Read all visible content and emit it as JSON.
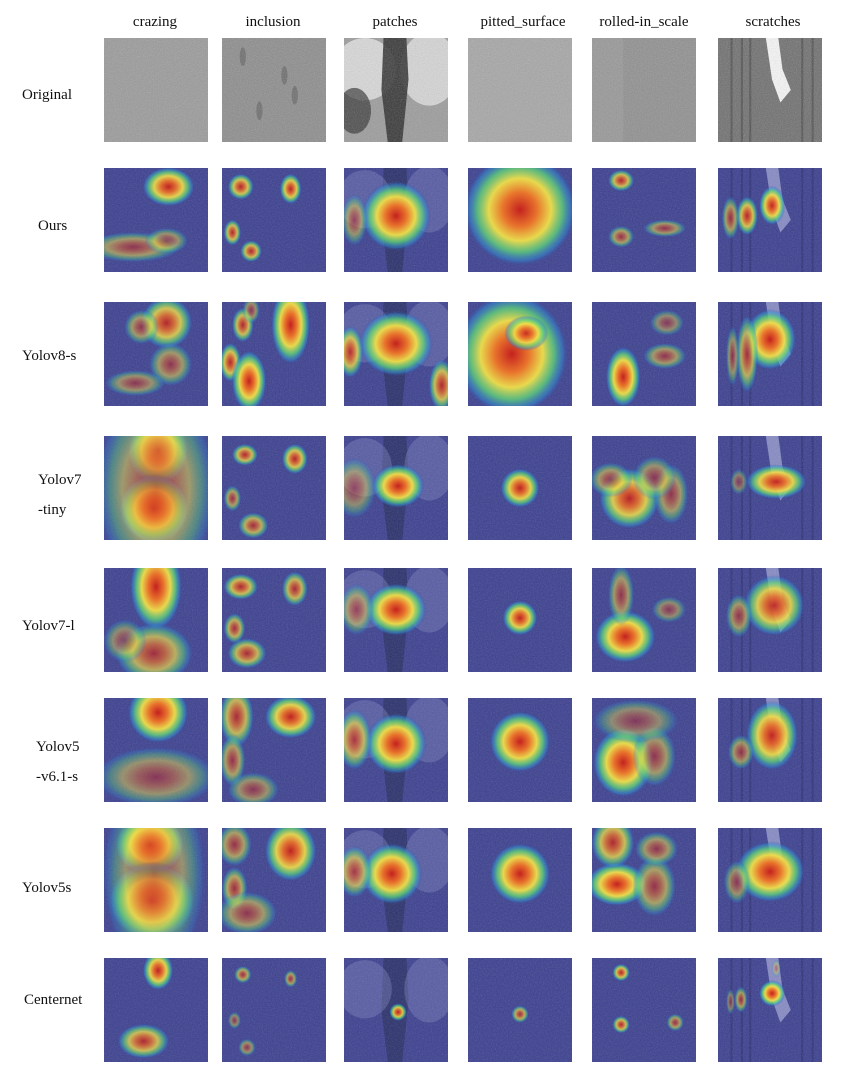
{
  "columns": [
    "crazing",
    "inclusion",
    "patches",
    "pitted_surface",
    "rolled-in_scale",
    "scratches"
  ],
  "rows": [
    {
      "label_lines": [
        "Original"
      ],
      "type": "original"
    },
    {
      "label_lines": [
        "Ours"
      ],
      "type": "heat"
    },
    {
      "label_lines": [
        "Yolov8-s"
      ],
      "type": "heat"
    },
    {
      "label_lines": [
        "Yolov7",
        "-tiny"
      ],
      "type": "heat"
    },
    {
      "label_lines": [
        "Yolov7-l"
      ],
      "type": "heat"
    },
    {
      "label_lines": [
        "Yolov5",
        "-v6.1-s"
      ],
      "type": "heat"
    },
    {
      "label_lines": [
        "Yolov5s"
      ],
      "type": "heat"
    },
    {
      "label_lines": [
        "Centernet"
      ],
      "type": "heat"
    }
  ],
  "colors": {
    "heat_background": "#3b3f8f",
    "heat_low": "#2f8fd8",
    "heat_mid": "#5fd37a",
    "heat_high_1": "#f0e04a",
    "heat_high_2": "#e8732c",
    "heat_peak": "#c4211f"
  }
}
